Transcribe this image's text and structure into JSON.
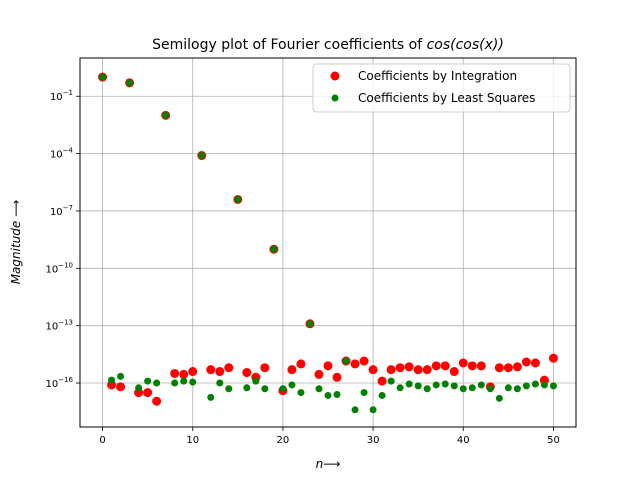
{
  "chart_data": {
    "type": "scatter",
    "title": "Semilogy plot of Fourier coefficients of cos(cos(x))",
    "title_prefix": "Semilogy plot of Fourier coefficients of ",
    "title_math": "cos(cos(x))",
    "xlabel": "n⟶",
    "ylabel": "Magnitude ⟶",
    "xscale": "linear",
    "yscale": "log",
    "xlim": [
      -2.5,
      52.5
    ],
    "ylim_exponent": [
      -18.3,
      1.0
    ],
    "grid": true,
    "legend_position": "top-right",
    "x_ticks": [
      0,
      10,
      20,
      30,
      40,
      50
    ],
    "x_tick_labels": [
      "0",
      "10",
      "20",
      "30",
      "40",
      "50"
    ],
    "y_ticks_exponent": [
      -1,
      -4,
      -7,
      -10,
      -13,
      -16
    ],
    "y_tick_base": "10",
    "x": [
      0,
      1,
      2,
      3,
      4,
      5,
      6,
      7,
      8,
      9,
      10,
      11,
      12,
      13,
      14,
      15,
      16,
      17,
      18,
      19,
      20,
      21,
      22,
      23,
      24,
      25,
      26,
      27,
      28,
      29,
      30,
      31,
      32,
      33,
      34,
      35,
      36,
      37,
      38,
      39,
      40,
      41,
      42,
      43,
      44,
      45,
      46,
      47,
      48,
      49,
      50
    ],
    "series": [
      {
        "name": "Coefficients by Integration",
        "color": "#ff0000",
        "log10_values": [
          0.0,
          -16.1,
          -16.2,
          -0.3,
          -16.5,
          -16.5,
          -16.95,
          -2.0,
          -15.5,
          -15.55,
          -15.4,
          -4.1,
          -15.3,
          -15.4,
          -15.2,
          -6.4,
          -15.45,
          -15.7,
          -15.2,
          -9.0,
          -16.4,
          -15.3,
          -15.0,
          -12.9,
          -15.55,
          -15.1,
          -15.7,
          -14.85,
          -15.0,
          -14.85,
          -15.3,
          -15.9,
          -15.3,
          -15.2,
          -15.15,
          -15.3,
          -15.3,
          -15.1,
          -15.1,
          -15.4,
          -14.95,
          -15.1,
          -15.1,
          -16.2,
          -15.2,
          -15.2,
          -15.15,
          -14.9,
          -14.95,
          -15.85,
          -14.7
        ]
      },
      {
        "name": "Coefficients by Least Squares",
        "color": "#008000",
        "log10_values": [
          0.0,
          -15.85,
          -15.65,
          -0.3,
          -16.25,
          -15.9,
          -16.0,
          -2.0,
          -16.0,
          -15.9,
          -15.95,
          -4.1,
          -16.75,
          -16.0,
          -16.3,
          -6.4,
          -16.25,
          -15.9,
          -16.3,
          -9.0,
          -16.3,
          -16.1,
          -16.5,
          -12.9,
          -16.3,
          -16.65,
          -16.6,
          -14.85,
          -17.4,
          -16.5,
          -17.4,
          -16.65,
          -15.9,
          -16.25,
          -16.05,
          -16.15,
          -16.3,
          -16.1,
          -16.05,
          -16.15,
          -16.3,
          -16.25,
          -16.1,
          -16.3,
          -16.8,
          -16.25,
          -16.3,
          -16.15,
          -16.05,
          -16.1,
          -16.15
        ]
      }
    ]
  }
}
